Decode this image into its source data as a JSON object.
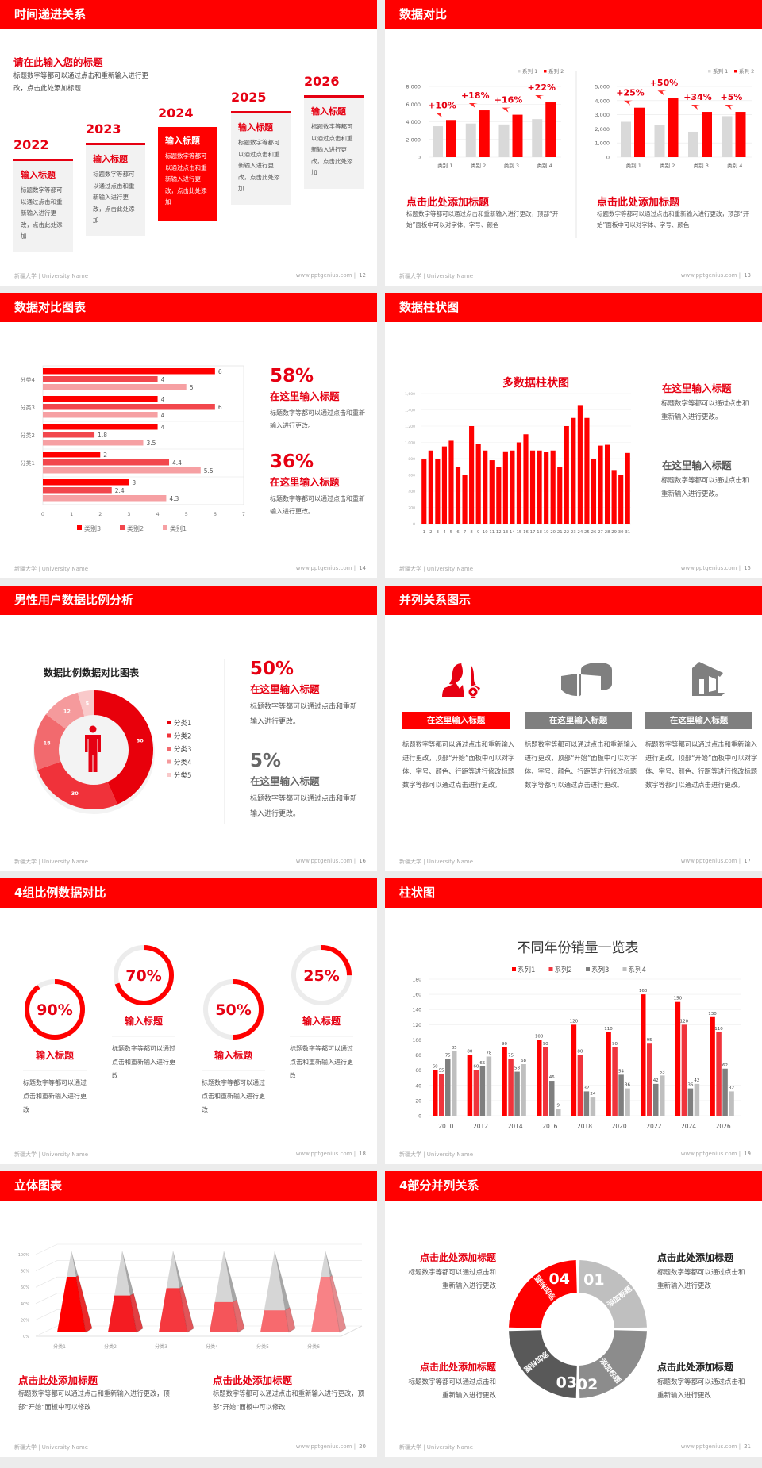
{
  "footer": {
    "left": "新疆大学 | University Name",
    "right": "www.pptgenius.com |"
  },
  "colors": {
    "accent": "#ff0000",
    "gray": "#7f7f7f",
    "light_gray": "#bfbfbf"
  },
  "slides": [
    {
      "title": "时间递进关系",
      "page": "12"
    },
    {
      "title": "数据对比",
      "page": "13"
    },
    {
      "title": "数据对比图表",
      "page": "14"
    },
    {
      "title": "数据柱状图",
      "page": "15"
    },
    {
      "title": "男性用户数据比例分析",
      "page": "16"
    },
    {
      "title": "并列关系图示",
      "page": "17"
    },
    {
      "title": "4组比例数据对比",
      "page": "18"
    },
    {
      "title": "柱状图",
      "page": "19"
    },
    {
      "title": "立体图表",
      "page": "20"
    },
    {
      "title": "4部分并列关系",
      "page": "21"
    }
  ],
  "timeline": {
    "heading": "请在此输入您的标题",
    "desc": "标题数字等都可以通过点击和重新输入进行更改，点击此处添加标题",
    "active_index": 2,
    "items": [
      {
        "year": "2022",
        "title": "输入标题",
        "text": "标题数字等都可以通过点击和重新输入进行更改，点击此处添加"
      },
      {
        "year": "2023",
        "title": "输入标题",
        "text": "标题数字等都可以通过点击和重新输入进行更改，点击此处添加"
      },
      {
        "year": "2024",
        "title": "输入标题",
        "text": "标题数字等都可以通过点击和重新输入进行更改，点击此处添加"
      },
      {
        "year": "2025",
        "title": "输入标题",
        "text": "标题数字等都可以通过点击和重新输入进行更改，点击此处添加"
      },
      {
        "year": "2026",
        "title": "输入标题",
        "text": "标题数字等都可以通过点击和重新输入进行更改，点击此处添加"
      }
    ]
  },
  "compare": {
    "blocks": [
      {
        "title": "点击此处添加标题",
        "text": "标题数字等都可以通过点击和重新输入进行更改，顶部“开始”面板中可以对字体、字号、颜色"
      },
      {
        "title": "点击此处添加标题",
        "text": "标题数字等都可以通过点击和重新输入进行更改，顶部“开始”面板中可以对字体、字号、颜色"
      }
    ]
  },
  "hbar_side": [
    {
      "pct": "58%",
      "title": "在这里输入标题",
      "text": "标题数字等都可以通过点击和重新输入进行更改。"
    },
    {
      "pct": "36%",
      "title": "在这里输入标题",
      "text": "标题数字等都可以通过点击和重新输入进行更改。"
    }
  ],
  "vbar_side": [
    {
      "title": "在这里输入标题",
      "text": "标题数字等都可以通过点击和重新输入进行更改。"
    },
    {
      "title": "在这里输入标题",
      "text": "标题数字等都可以通过点击和重新输入进行更改。"
    }
  ],
  "donut_side": [
    {
      "pct": "50%",
      "title": "在这里输入标题",
      "text": "标题数字等都可以通过点击和重新输入进行更改。"
    },
    {
      "pct": "5%",
      "title": "在这里输入标题",
      "text": "标题数字等都可以通过点击和重新输入进行更改。"
    }
  ],
  "parallel": [
    {
      "icon": "user-add-icon",
      "title": "在这里输入标题",
      "text": "标题数字等都可以通过点击和重新输入进行更改，顶部“开始”面板中可以对字体、字号、颜色、行距等进行修改标题数字等都可以通过点击进行更改。"
    },
    {
      "icon": "pie-chart-3d-icon",
      "title": "在这里输入标题",
      "text": "标题数字等都可以通过点击和重新输入进行更改，顶部“开始”面板中可以对字体、字号、颜色、行距等进行修改标题数字等都可以通过点击进行更改。"
    },
    {
      "icon": "house-icon",
      "title": "在这里输入标题",
      "text": "标题数字等都可以通过点击和重新输入进行更改，顶部“开始”面板中可以对字体、字号、颜色、行距等进行修改标题数字等都可以通过点击进行更改。"
    }
  ],
  "rings": [
    {
      "value": 90,
      "label": "90%",
      "title": "输入标题",
      "text": "标题数字等都可以通过点击和重新输入进行更改"
    },
    {
      "value": 70,
      "label": "70%",
      "title": "输入标题",
      "text": "标题数字等都可以通过点击和重新输入进行更改"
    },
    {
      "value": 50,
      "label": "50%",
      "title": "输入标题",
      "text": "标题数字等都可以通过点击和重新输入进行更改"
    },
    {
      "value": 25,
      "label": "25%",
      "title": "输入标题",
      "text": "标题数字等都可以通过点击和重新输入进行更改"
    }
  ],
  "pyramid_blocks": [
    {
      "title": "点击此处添加标题",
      "text": "标题数字等都可以通过点击和重新输入进行更改，顶部“开始”面板中可以修改"
    },
    {
      "title": "点击此处添加标题",
      "text": "标题数字等都可以通过点击和重新输入进行更改，顶部“开始”面板中可以修改"
    }
  ],
  "cycle": {
    "segments": [
      {
        "num": "01",
        "label": "添加标题",
        "color": "#bfbfbf"
      },
      {
        "num": "02",
        "label": "添加标题",
        "color": "#8c8c8c"
      },
      {
        "num": "03",
        "label": "添加标题",
        "color": "#595959"
      },
      {
        "num": "04",
        "label": "添加标题",
        "color": "#ff0000"
      }
    ],
    "blocks": [
      {
        "title": "点击此处添加标题",
        "text": "标题数字等都可以通过点击和重新输入进行更改"
      },
      {
        "title": "点击此处添加标题",
        "text": "标题数字等都可以通过点击和重新输入进行更改"
      },
      {
        "title": "点击此处添加标题",
        "text": "标题数字等都可以通过点击和重新输入进行更改"
      },
      {
        "title": "点击此处添加标题",
        "text": "标题数字等都可以通过点击和重新输入进行更改"
      }
    ]
  },
  "chart_data": [
    {
      "type": "bar",
      "categories": [
        "类别 1",
        "类别 2",
        "类别 3",
        "类别 4"
      ],
      "series": [
        {
          "name": "系列 1",
          "values": [
            3500,
            3800,
            3700,
            4300
          ],
          "color": "#d9d9d9"
        },
        {
          "name": "系列 2",
          "values": [
            4200,
            5300,
            4800,
            6200
          ],
          "color": "#ff0000"
        }
      ],
      "annotations": [
        "+10%",
        "+18%",
        "+16%",
        "+22%"
      ],
      "ylim": [
        0,
        8000
      ],
      "yticks": [
        "0",
        "2,000",
        "4,000",
        "6,000",
        "8,000"
      ],
      "legend": "top-right",
      "grid": true
    },
    {
      "type": "bar",
      "categories": [
        "类别 1",
        "类别 2",
        "类别 3",
        "类别 4"
      ],
      "series": [
        {
          "name": "系列 1",
          "values": [
            2500,
            2300,
            1800,
            2900
          ],
          "color": "#d9d9d9"
        },
        {
          "name": "系列 2",
          "values": [
            3500,
            4200,
            3200,
            3200
          ],
          "color": "#ff0000"
        }
      ],
      "annotations": [
        "+25%",
        "+50%",
        "+34%",
        "+5%"
      ],
      "ylim": [
        0,
        5000
      ],
      "yticks": [
        "0",
        "1,000",
        "2,000",
        "3,000",
        "4,000",
        "5,000"
      ],
      "legend": "top-right",
      "grid": true
    },
    {
      "type": "bar",
      "orientation": "horizontal",
      "categories": [
        "",
        "分类1",
        "分类2",
        "分类3",
        "分类4"
      ],
      "series": [
        {
          "name": "类别3",
          "values": [
            3,
            2,
            4,
            4,
            6
          ],
          "labels": [
            "3",
            "2",
            "4",
            "4",
            "6"
          ],
          "color": "#ff0000"
        },
        {
          "name": "类别2",
          "values": [
            2.4,
            4.4,
            1.8,
            6,
            4
          ],
          "labels": [
            "2.4",
            "4.4",
            "1.8",
            "6",
            "4"
          ],
          "color": "#f2474d"
        },
        {
          "name": "类别1",
          "values": [
            4.3,
            5.5,
            3.5,
            4,
            5
          ],
          "labels": [
            "4.3",
            "5.5",
            "3.5",
            "4",
            "5"
          ],
          "color": "#f6a0a3"
        }
      ],
      "xlim": [
        0,
        7
      ],
      "xticks": [
        "0",
        "1",
        "2",
        "3",
        "4",
        "5",
        "6",
        "7"
      ],
      "legend": "bottom",
      "grid": true
    },
    {
      "type": "bar",
      "title": "多数据柱状图",
      "categories": [
        "1",
        "2",
        "3",
        "4",
        "5",
        "6",
        "7",
        "8",
        "9",
        "10",
        "11",
        "12",
        "13",
        "14",
        "15",
        "16",
        "17",
        "18",
        "19",
        "20",
        "21",
        "22",
        "23",
        "24",
        "25",
        "26",
        "27",
        "28",
        "29",
        "30",
        "31"
      ],
      "values": [
        790,
        900,
        800,
        950,
        1020,
        700,
        600,
        1200,
        980,
        900,
        780,
        700,
        890,
        900,
        1000,
        1100,
        900,
        900,
        880,
        900,
        700,
        1200,
        1300,
        1450,
        1300,
        800,
        960,
        970,
        660,
        600,
        870
      ],
      "ylim": [
        0,
        1600
      ],
      "yticks": [
        "0",
        "200",
        "400",
        "600",
        "800",
        "1,000",
        "1,200",
        "1,400",
        "1,600"
      ],
      "color": "#ff0000",
      "grid": true
    },
    {
      "type": "pie",
      "donut": true,
      "title": "数据比例数据对比图表",
      "categories": [
        "分类1",
        "分类2",
        "分类3",
        "分类4",
        "分类5"
      ],
      "values": [
        50,
        30,
        18,
        12,
        5
      ],
      "labels": [
        "50",
        "30",
        "18",
        "12",
        "5"
      ],
      "colors": [
        "#e8000b",
        "#f0323a",
        "#f26a6e",
        "#f59a9c",
        "#f9c9ca"
      ],
      "legend": "right"
    },
    {
      "type": "bar",
      "title": "不同年份销量一览表",
      "categories": [
        "2010",
        "2012",
        "2014",
        "2016",
        "2018",
        "2020",
        "2022",
        "2024",
        "2026"
      ],
      "series": [
        {
          "name": "系列1",
          "values": [
            60,
            80,
            90,
            100,
            120,
            110,
            160,
            150,
            130
          ],
          "color": "#ff0000"
        },
        {
          "name": "系列2",
          "values": [
            55,
            60,
            75,
            90,
            80,
            90,
            95,
            120,
            110
          ],
          "color": "#f0343c"
        },
        {
          "name": "系列3",
          "values": [
            75,
            65,
            58,
            46,
            32,
            54,
            42,
            36,
            62
          ],
          "color": "#7f7f7f"
        },
        {
          "name": "系列4",
          "values": [
            85,
            78,
            68,
            9,
            24,
            36,
            53,
            42,
            32
          ],
          "color": "#bfbfbf"
        }
      ],
      "ylim": [
        0,
        180
      ],
      "yticks": [
        "0",
        "20",
        "40",
        "60",
        "80",
        "100",
        "120",
        "140",
        "160",
        "180"
      ],
      "legend": "top",
      "grid": true
    },
    {
      "type": "bar",
      "style": "3d-pyramid",
      "categories": [
        "分类1",
        "分类2",
        "分类3",
        "分类4",
        "分类5",
        "分类6"
      ],
      "values": [
        68,
        45,
        54,
        37,
        27,
        68
      ],
      "ylim": [
        0,
        100
      ],
      "yticks": [
        "0%",
        "20%",
        "40%",
        "60%",
        "80%",
        "100%"
      ],
      "colors": [
        "#ff0000",
        "#f41c22",
        "#f5383e",
        "#f5555a",
        "#f76a6e",
        "#f88286"
      ],
      "grid": true
    }
  ]
}
